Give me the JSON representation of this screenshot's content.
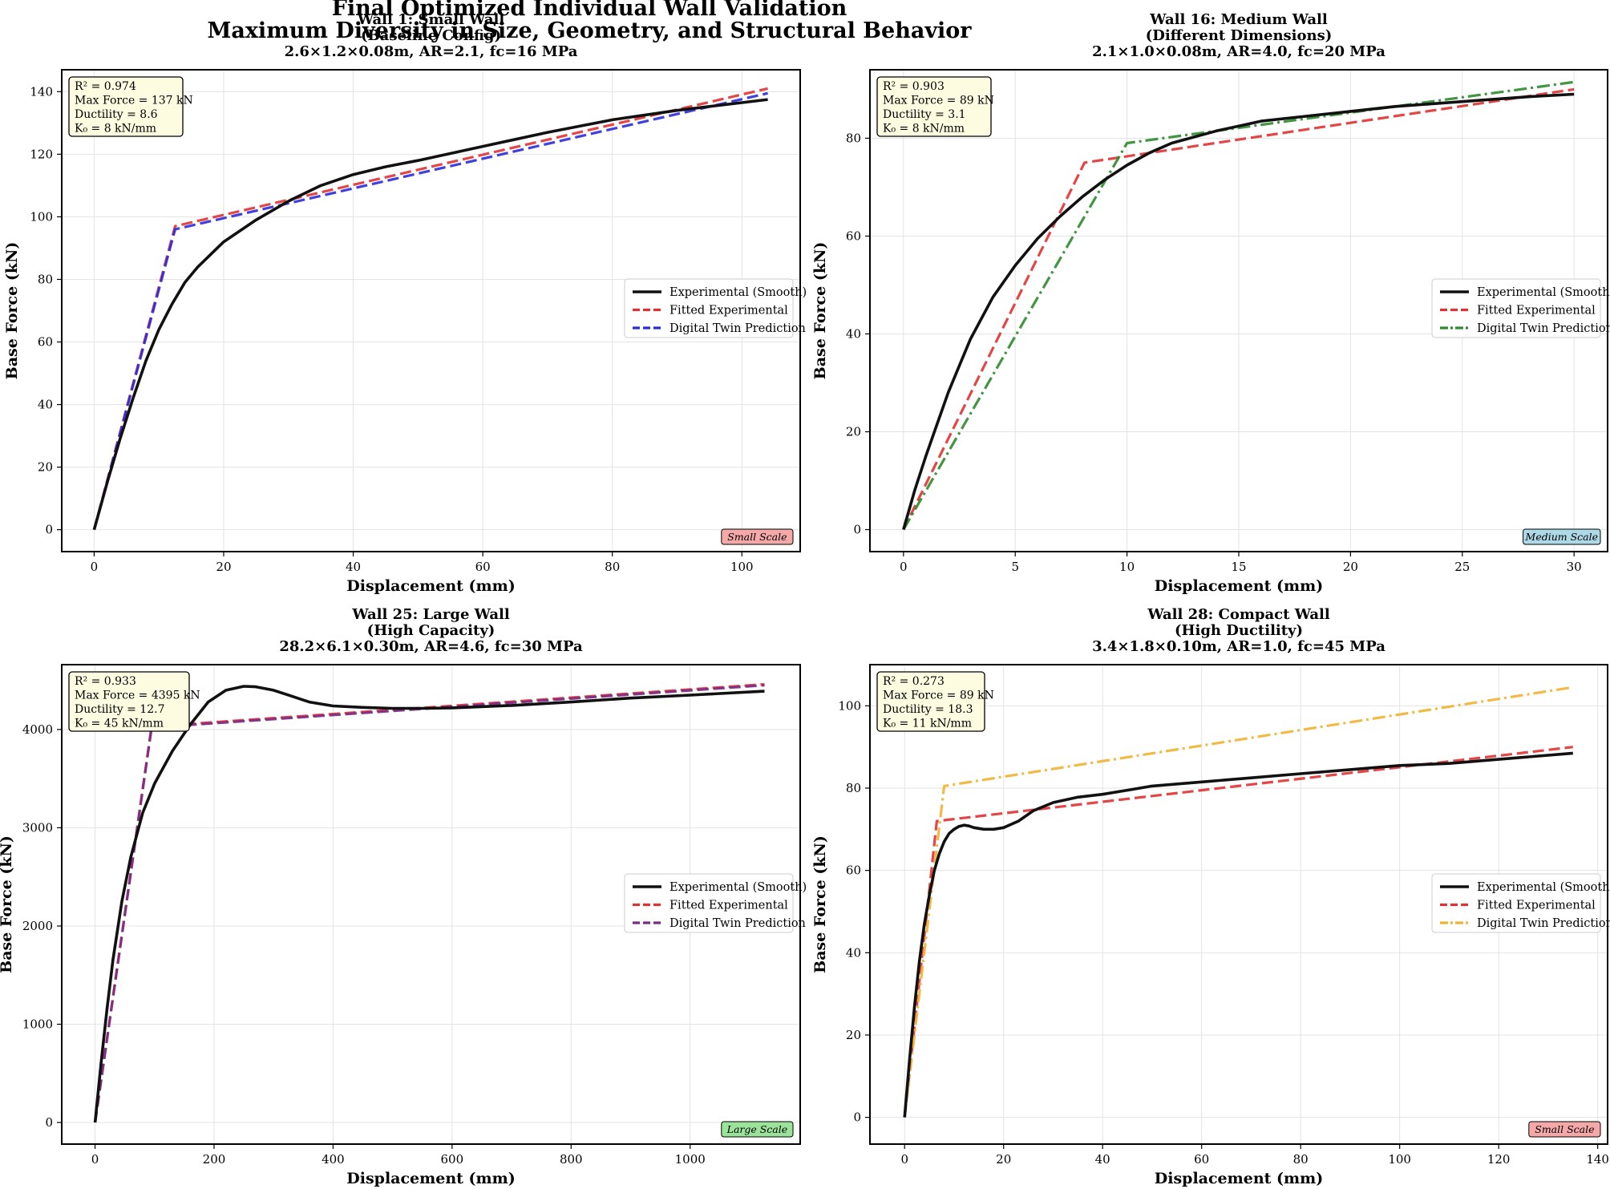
{
  "figure": {
    "suptitle_line1": "Final Optimized Individual Wall Validation",
    "suptitle_line2": "Maximum Diversity in Size, Geometry, and Structural Behavior"
  },
  "chart_data": [
    {
      "type": "line",
      "title_lines": [
        "Wall 1: Small Wall",
        "(Baseline Config)",
        "2.6×1.2×0.08m, AR=2.1, fc=16 MPa"
      ],
      "xlabel": "Displacement (mm)",
      "ylabel": "Base Force (kN)",
      "xlim": [
        -5,
        109
      ],
      "ylim": [
        -7,
        147
      ],
      "xticks": [
        0,
        20,
        40,
        60,
        80,
        100
      ],
      "yticks": [
        0,
        20,
        40,
        60,
        80,
        100,
        120,
        140
      ],
      "grid": true,
      "legend_position": "center-right",
      "info_lines": [
        "R² = 0.974",
        "Max Force = 137 kN",
        "Ductility = 8.6",
        "K₀ = 8 kN/mm"
      ],
      "badge": {
        "text": "Small Scale",
        "color": "#f4a8a8"
      },
      "series": [
        {
          "name": "Experimental (Smooth)",
          "color": "#111111",
          "style": "solid",
          "x": [
            0,
            2,
            4,
            6,
            8,
            10,
            12,
            14,
            16,
            18,
            20,
            25,
            30,
            35,
            40,
            45,
            50,
            60,
            70,
            80,
            90,
            100,
            104
          ],
          "y": [
            0,
            15,
            29,
            42,
            54,
            64,
            72,
            79,
            84,
            88,
            92,
            99,
            105,
            110,
            113.5,
            116,
            118,
            122.5,
            127,
            131,
            134,
            136.5,
            137.5
          ]
        },
        {
          "name": "Fitted Experimental",
          "color": "#e03232",
          "style": "dashed",
          "x": [
            0,
            12.5,
            104
          ],
          "y": [
            0,
            97,
            141
          ]
        },
        {
          "name": "Digital Twin Prediction",
          "color": "#2b2bdc",
          "style": "dashed",
          "x": [
            0,
            12.5,
            104
          ],
          "y": [
            0,
            96,
            139.5
          ]
        }
      ]
    },
    {
      "type": "line",
      "title_lines": [
        "Wall 16: Medium Wall",
        "(Different Dimensions)",
        "2.1×1.0×0.08m, AR=4.0, fc=20 MPa"
      ],
      "xlabel": "Displacement (mm)",
      "ylabel": "Base Force (kN)",
      "xlim": [
        -1.5,
        31.5
      ],
      "ylim": [
        -4.5,
        94
      ],
      "xticks": [
        0,
        5,
        10,
        15,
        20,
        25,
        30
      ],
      "yticks": [
        0,
        20,
        40,
        60,
        80
      ],
      "grid": true,
      "legend_position": "center-right",
      "info_lines": [
        "R² = 0.903",
        "Max Force = 89 kN",
        "Ductility = 3.1",
        "K₀ = 8 kN/mm"
      ],
      "badge": {
        "text": "Medium Scale",
        "color": "#add8e6"
      },
      "series": [
        {
          "name": "Experimental (Smooth)",
          "color": "#111111",
          "style": "solid",
          "x": [
            0,
            0.5,
            1,
            1.5,
            2,
            2.5,
            3,
            4,
            5,
            6,
            7,
            8,
            9,
            10,
            11,
            12,
            14,
            16,
            18,
            20,
            22,
            25,
            28,
            30
          ],
          "y": [
            0,
            8,
            15,
            21.5,
            28,
            33.5,
            39,
            47.5,
            54,
            59.5,
            64,
            68,
            71.5,
            74.5,
            77,
            79,
            81.5,
            83.5,
            84.5,
            85.5,
            86.5,
            87.5,
            88.5,
            89
          ]
        },
        {
          "name": "Fitted Experimental",
          "color": "#e03232",
          "style": "dashed",
          "x": [
            0,
            8.1,
            30
          ],
          "y": [
            0,
            75,
            90
          ]
        },
        {
          "name": "Digital Twin Prediction",
          "color": "#2e8b2e",
          "style": "dashdot",
          "x": [
            0,
            10,
            30
          ],
          "y": [
            0,
            79,
            91.5
          ]
        }
      ]
    },
    {
      "type": "line",
      "title_lines": [
        "Wall 25: Large Wall",
        "(High Capacity)",
        "28.2×6.1×0.30m, AR=4.6, fc=30 MPa"
      ],
      "xlabel": "Displacement (mm)",
      "ylabel": "Base Force (kN)",
      "xlim": [
        -56,
        1185
      ],
      "ylim": [
        -220,
        4660
      ],
      "xticks": [
        0,
        200,
        400,
        600,
        800,
        1000
      ],
      "yticks": [
        0,
        1000,
        2000,
        3000,
        4000
      ],
      "grid": true,
      "legend_position": "center-right",
      "info_lines": [
        "R² = 0.933",
        "Max Force = 4395 kN",
        "Ductility = 12.7",
        "K₀ = 45 kN/mm"
      ],
      "badge": {
        "text": "Large Scale",
        "color": "#9be39b"
      },
      "series": [
        {
          "name": "Experimental (Smooth)",
          "color": "#111111",
          "style": "solid",
          "x": [
            0,
            10,
            20,
            30,
            45,
            60,
            80,
            100,
            130,
            160,
            190,
            220,
            250,
            270,
            300,
            330,
            360,
            400,
            450,
            500,
            550,
            600,
            700,
            800,
            900,
            1000,
            1125
          ],
          "y": [
            0,
            600,
            1150,
            1650,
            2250,
            2700,
            3150,
            3450,
            3780,
            4050,
            4280,
            4400,
            4440,
            4435,
            4400,
            4340,
            4280,
            4240,
            4225,
            4215,
            4215,
            4220,
            4245,
            4280,
            4320,
            4350,
            4390
          ]
        },
        {
          "name": "Fitted Experimental",
          "color": "#e03232",
          "style": "dashed",
          "x": [
            0,
            95,
            1125
          ],
          "y": [
            0,
            4030,
            4460
          ]
        },
        {
          "name": "Digital Twin Prediction",
          "color": "#7a2a86",
          "style": "dashed",
          "x": [
            0,
            95,
            1125
          ],
          "y": [
            0,
            4020,
            4450
          ]
        }
      ]
    },
    {
      "type": "line",
      "title_lines": [
        "Wall 28: Compact Wall",
        "(High Ductility)",
        "3.4×1.8×0.10m, AR=1.0, fc=45 MPa"
      ],
      "xlabel": "Displacement (mm)",
      "ylabel": "Base Force (kN)",
      "xlim": [
        -7,
        142
      ],
      "ylim": [
        -6.5,
        110
      ],
      "xticks": [
        0,
        20,
        40,
        60,
        80,
        100,
        120,
        140
      ],
      "yticks": [
        0,
        20,
        40,
        60,
        80,
        100
      ],
      "grid": true,
      "legend_position": "center-right",
      "info_lines": [
        "R² = 0.273",
        "Max Force = 89 kN",
        "Ductility = 18.3",
        "K₀ = 11 kN/mm"
      ],
      "badge": {
        "text": "Small Scale",
        "color": "#f4a8a8"
      },
      "series": [
        {
          "name": "Experimental (Smooth)",
          "color": "#111111",
          "style": "solid",
          "x": [
            0,
            1,
            2,
            3,
            4,
            5,
            6,
            7,
            8,
            9,
            10,
            11,
            12,
            13,
            14,
            16,
            18,
            20,
            23,
            26,
            30,
            35,
            40,
            45,
            50,
            60,
            70,
            80,
            90,
            100,
            110,
            120,
            135
          ],
          "y": [
            0,
            14,
            27,
            38,
            47,
            54,
            60,
            64,
            67,
            69,
            70,
            70.7,
            71,
            70.8,
            70.4,
            70,
            70,
            70.4,
            72,
            74.5,
            76.5,
            77.8,
            78.5,
            79.5,
            80.5,
            81.5,
            82.5,
            83.5,
            84.5,
            85.5,
            86,
            87,
            88.5
          ]
        },
        {
          "name": "Fitted Experimental",
          "color": "#e03232",
          "style": "dashed",
          "x": [
            0,
            6.5,
            135
          ],
          "y": [
            0,
            72,
            90
          ]
        },
        {
          "name": "Digital Twin Prediction",
          "color": "#f0b233",
          "style": "dashdot",
          "x": [
            0,
            8,
            135
          ],
          "y": [
            0,
            80.5,
            104.5
          ]
        }
      ]
    }
  ]
}
